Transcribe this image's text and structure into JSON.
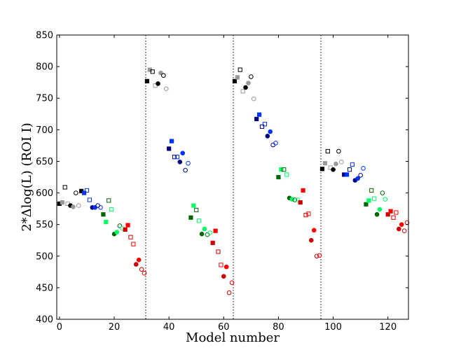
{
  "chart_data": {
    "type": "scatter",
    "title": "",
    "xlabel": "Model number",
    "ylabel": "2*Δlog(L) (ROI I)",
    "xlim": [
      -1,
      127.5
    ],
    "ylim": [
      400,
      850
    ],
    "xticks": [
      0,
      20,
      40,
      60,
      80,
      100,
      120
    ],
    "yticks": [
      400,
      450,
      500,
      550,
      600,
      650,
      700,
      750,
      800,
      850
    ],
    "vlines": [
      31.5,
      63.5,
      95.5
    ],
    "colors": {
      "black": "#000000",
      "gray": "#999999",
      "blue": "#0033ff",
      "dark_blue": "#000080",
      "green": "#00ff66",
      "dark_green": "#006600",
      "red": "#ff0000",
      "dark_red": "#cc0000"
    },
    "points": [
      {
        "x": 0,
        "y": 583,
        "marker": "s",
        "fill": true,
        "color": "black"
      },
      {
        "x": 1,
        "y": 585,
        "marker": "s",
        "fill": true,
        "color": "gray"
      },
      {
        "x": 2,
        "y": 609,
        "marker": "s",
        "fill": false,
        "color": "black"
      },
      {
        "x": 3,
        "y": 583,
        "marker": "s",
        "fill": false,
        "color": "gray"
      },
      {
        "x": 4,
        "y": 580,
        "marker": "o",
        "fill": true,
        "color": "black"
      },
      {
        "x": 5,
        "y": 578,
        "marker": "o",
        "fill": true,
        "color": "gray"
      },
      {
        "x": 6,
        "y": 600,
        "marker": "o",
        "fill": false,
        "color": "black"
      },
      {
        "x": 7,
        "y": 580,
        "marker": "o",
        "fill": false,
        "color": "gray"
      },
      {
        "x": 8,
        "y": 603,
        "marker": "s",
        "fill": true,
        "color": "black"
      },
      {
        "x": 9,
        "y": 600,
        "marker": "s",
        "fill": true,
        "color": "blue"
      },
      {
        "x": 10,
        "y": 604,
        "marker": "s",
        "fill": false,
        "color": "blue"
      },
      {
        "x": 11,
        "y": 589,
        "marker": "s",
        "fill": false,
        "color": "blue"
      },
      {
        "x": 12,
        "y": 577,
        "marker": "o",
        "fill": true,
        "color": "dark_blue"
      },
      {
        "x": 13,
        "y": 577,
        "marker": "o",
        "fill": true,
        "color": "blue"
      },
      {
        "x": 14,
        "y": 580,
        "marker": "o",
        "fill": false,
        "color": "dark_blue"
      },
      {
        "x": 15,
        "y": 577,
        "marker": "o",
        "fill": false,
        "color": "blue"
      },
      {
        "x": 16,
        "y": 566,
        "marker": "s",
        "fill": true,
        "color": "dark_green"
      },
      {
        "x": 17,
        "y": 554,
        "marker": "s",
        "fill": true,
        "color": "green"
      },
      {
        "x": 18,
        "y": 588,
        "marker": "s",
        "fill": false,
        "color": "dark_green"
      },
      {
        "x": 19,
        "y": 574,
        "marker": "s",
        "fill": false,
        "color": "green"
      },
      {
        "x": 20,
        "y": 535,
        "marker": "o",
        "fill": true,
        "color": "dark_green"
      },
      {
        "x": 21,
        "y": 538,
        "marker": "o",
        "fill": true,
        "color": "green"
      },
      {
        "x": 22,
        "y": 548,
        "marker": "o",
        "fill": false,
        "color": "dark_green"
      },
      {
        "x": 23,
        "y": 544,
        "marker": "o",
        "fill": false,
        "color": "green"
      },
      {
        "x": 24,
        "y": 542,
        "marker": "s",
        "fill": true,
        "color": "dark_red"
      },
      {
        "x": 25,
        "y": 549,
        "marker": "s",
        "fill": true,
        "color": "red"
      },
      {
        "x": 26,
        "y": 530,
        "marker": "s",
        "fill": false,
        "color": "dark_red"
      },
      {
        "x": 27,
        "y": 519,
        "marker": "s",
        "fill": false,
        "color": "red"
      },
      {
        "x": 28,
        "y": 487,
        "marker": "o",
        "fill": true,
        "color": "dark_red"
      },
      {
        "x": 29,
        "y": 494,
        "marker": "o",
        "fill": true,
        "color": "red"
      },
      {
        "x": 30,
        "y": 479,
        "marker": "o",
        "fill": false,
        "color": "dark_red"
      },
      {
        "x": 31,
        "y": 473,
        "marker": "o",
        "fill": false,
        "color": "red"
      },
      {
        "x": 32,
        "y": 777,
        "marker": "s",
        "fill": true,
        "color": "black"
      },
      {
        "x": 33,
        "y": 795,
        "marker": "s",
        "fill": true,
        "color": "gray"
      },
      {
        "x": 34,
        "y": 792,
        "marker": "s",
        "fill": false,
        "color": "black"
      },
      {
        "x": 35,
        "y": 770,
        "marker": "s",
        "fill": false,
        "color": "gray"
      },
      {
        "x": 36,
        "y": 773,
        "marker": "o",
        "fill": true,
        "color": "black"
      },
      {
        "x": 37,
        "y": 790,
        "marker": "o",
        "fill": true,
        "color": "gray"
      },
      {
        "x": 38,
        "y": 786,
        "marker": "o",
        "fill": false,
        "color": "black"
      },
      {
        "x": 39,
        "y": 765,
        "marker": "o",
        "fill": false,
        "color": "gray"
      },
      {
        "x": 40,
        "y": 670,
        "marker": "s",
        "fill": true,
        "color": "dark_blue"
      },
      {
        "x": 41,
        "y": 682,
        "marker": "s",
        "fill": true,
        "color": "blue"
      },
      {
        "x": 42,
        "y": 657,
        "marker": "s",
        "fill": false,
        "color": "dark_blue"
      },
      {
        "x": 43,
        "y": 657,
        "marker": "s",
        "fill": false,
        "color": "blue"
      },
      {
        "x": 44,
        "y": 649,
        "marker": "o",
        "fill": true,
        "color": "dark_blue"
      },
      {
        "x": 45,
        "y": 663,
        "marker": "o",
        "fill": true,
        "color": "blue"
      },
      {
        "x": 46,
        "y": 636,
        "marker": "o",
        "fill": false,
        "color": "dark_blue"
      },
      {
        "x": 47,
        "y": 647,
        "marker": "o",
        "fill": false,
        "color": "blue"
      },
      {
        "x": 48,
        "y": 561,
        "marker": "s",
        "fill": true,
        "color": "dark_green"
      },
      {
        "x": 49,
        "y": 580,
        "marker": "s",
        "fill": true,
        "color": "green"
      },
      {
        "x": 50,
        "y": 573,
        "marker": "s",
        "fill": false,
        "color": "dark_green"
      },
      {
        "x": 51,
        "y": 556,
        "marker": "s",
        "fill": false,
        "color": "green"
      },
      {
        "x": 52,
        "y": 535,
        "marker": "o",
        "fill": true,
        "color": "dark_green"
      },
      {
        "x": 53,
        "y": 543,
        "marker": "o",
        "fill": true,
        "color": "green"
      },
      {
        "x": 54,
        "y": 534,
        "marker": "o",
        "fill": false,
        "color": "dark_green"
      },
      {
        "x": 55,
        "y": 537,
        "marker": "o",
        "fill": false,
        "color": "green"
      },
      {
        "x": 56,
        "y": 521,
        "marker": "s",
        "fill": true,
        "color": "dark_red"
      },
      {
        "x": 57,
        "y": 540,
        "marker": "s",
        "fill": true,
        "color": "red"
      },
      {
        "x": 58,
        "y": 507,
        "marker": "s",
        "fill": false,
        "color": "dark_red"
      },
      {
        "x": 59,
        "y": 486,
        "marker": "s",
        "fill": false,
        "color": "red"
      },
      {
        "x": 60,
        "y": 468,
        "marker": "o",
        "fill": true,
        "color": "dark_red"
      },
      {
        "x": 61,
        "y": 483,
        "marker": "o",
        "fill": true,
        "color": "red"
      },
      {
        "x": 62,
        "y": 442,
        "marker": "o",
        "fill": false,
        "color": "dark_red"
      },
      {
        "x": 63,
        "y": 458,
        "marker": "o",
        "fill": false,
        "color": "red"
      },
      {
        "x": 64,
        "y": 777,
        "marker": "s",
        "fill": true,
        "color": "black"
      },
      {
        "x": 65,
        "y": 783,
        "marker": "s",
        "fill": true,
        "color": "gray"
      },
      {
        "x": 66,
        "y": 795,
        "marker": "s",
        "fill": false,
        "color": "black"
      },
      {
        "x": 67,
        "y": 761,
        "marker": "s",
        "fill": false,
        "color": "gray"
      },
      {
        "x": 68,
        "y": 767,
        "marker": "o",
        "fill": true,
        "color": "black"
      },
      {
        "x": 69,
        "y": 774,
        "marker": "o",
        "fill": true,
        "color": "gray"
      },
      {
        "x": 70,
        "y": 784,
        "marker": "o",
        "fill": false,
        "color": "black"
      },
      {
        "x": 71,
        "y": 749,
        "marker": "o",
        "fill": false,
        "color": "gray"
      },
      {
        "x": 72,
        "y": 717,
        "marker": "s",
        "fill": true,
        "color": "dark_blue"
      },
      {
        "x": 73,
        "y": 724,
        "marker": "s",
        "fill": true,
        "color": "blue"
      },
      {
        "x": 74,
        "y": 705,
        "marker": "s",
        "fill": false,
        "color": "dark_blue"
      },
      {
        "x": 75,
        "y": 709,
        "marker": "s",
        "fill": false,
        "color": "blue"
      },
      {
        "x": 76,
        "y": 690,
        "marker": "o",
        "fill": true,
        "color": "dark_blue"
      },
      {
        "x": 77,
        "y": 697,
        "marker": "o",
        "fill": true,
        "color": "blue"
      },
      {
        "x": 78,
        "y": 676,
        "marker": "o",
        "fill": false,
        "color": "dark_blue"
      },
      {
        "x": 79,
        "y": 679,
        "marker": "o",
        "fill": false,
        "color": "blue"
      },
      {
        "x": 80,
        "y": 625,
        "marker": "s",
        "fill": true,
        "color": "dark_green"
      },
      {
        "x": 81,
        "y": 637,
        "marker": "s",
        "fill": true,
        "color": "green"
      },
      {
        "x": 82,
        "y": 637,
        "marker": "s",
        "fill": false,
        "color": "dark_green"
      },
      {
        "x": 83,
        "y": 629,
        "marker": "s",
        "fill": false,
        "color": "green"
      },
      {
        "x": 84,
        "y": 592,
        "marker": "o",
        "fill": true,
        "color": "dark_green"
      },
      {
        "x": 85,
        "y": 590,
        "marker": "o",
        "fill": true,
        "color": "green"
      },
      {
        "x": 86,
        "y": 589,
        "marker": "o",
        "fill": false,
        "color": "dark_green"
      },
      {
        "x": 87,
        "y": 589,
        "marker": "o",
        "fill": false,
        "color": "green"
      },
      {
        "x": 88,
        "y": 585,
        "marker": "s",
        "fill": true,
        "color": "dark_red"
      },
      {
        "x": 89,
        "y": 604,
        "marker": "s",
        "fill": true,
        "color": "red"
      },
      {
        "x": 90,
        "y": 565,
        "marker": "s",
        "fill": false,
        "color": "dark_red"
      },
      {
        "x": 91,
        "y": 567,
        "marker": "s",
        "fill": false,
        "color": "red"
      },
      {
        "x": 92,
        "y": 525,
        "marker": "o",
        "fill": true,
        "color": "dark_red"
      },
      {
        "x": 93,
        "y": 541,
        "marker": "o",
        "fill": true,
        "color": "red"
      },
      {
        "x": 94,
        "y": 500,
        "marker": "o",
        "fill": false,
        "color": "dark_red"
      },
      {
        "x": 95,
        "y": 501,
        "marker": "o",
        "fill": false,
        "color": "red"
      },
      {
        "x": 96,
        "y": 638,
        "marker": "s",
        "fill": true,
        "color": "black"
      },
      {
        "x": 97,
        "y": 647,
        "marker": "s",
        "fill": true,
        "color": "gray"
      },
      {
        "x": 98,
        "y": 666,
        "marker": "s",
        "fill": false,
        "color": "black"
      },
      {
        "x": 99,
        "y": 640,
        "marker": "s",
        "fill": false,
        "color": "gray"
      },
      {
        "x": 100,
        "y": 637,
        "marker": "o",
        "fill": true,
        "color": "black"
      },
      {
        "x": 101,
        "y": 646,
        "marker": "o",
        "fill": true,
        "color": "gray"
      },
      {
        "x": 102,
        "y": 666,
        "marker": "o",
        "fill": false,
        "color": "black"
      },
      {
        "x": 103,
        "y": 649,
        "marker": "o",
        "fill": false,
        "color": "gray"
      },
      {
        "x": 104,
        "y": 629,
        "marker": "s",
        "fill": true,
        "color": "dark_blue"
      },
      {
        "x": 105,
        "y": 629,
        "marker": "s",
        "fill": true,
        "color": "blue"
      },
      {
        "x": 106,
        "y": 637,
        "marker": "s",
        "fill": false,
        "color": "dark_blue"
      },
      {
        "x": 107,
        "y": 645,
        "marker": "s",
        "fill": false,
        "color": "blue"
      },
      {
        "x": 108,
        "y": 620,
        "marker": "o",
        "fill": true,
        "color": "dark_blue"
      },
      {
        "x": 109,
        "y": 623,
        "marker": "o",
        "fill": true,
        "color": "blue"
      },
      {
        "x": 110,
        "y": 628,
        "marker": "o",
        "fill": false,
        "color": "dark_blue"
      },
      {
        "x": 111,
        "y": 639,
        "marker": "o",
        "fill": false,
        "color": "blue"
      },
      {
        "x": 112,
        "y": 582,
        "marker": "s",
        "fill": true,
        "color": "dark_green"
      },
      {
        "x": 113,
        "y": 588,
        "marker": "s",
        "fill": true,
        "color": "green"
      },
      {
        "x": 114,
        "y": 604,
        "marker": "s",
        "fill": false,
        "color": "dark_green"
      },
      {
        "x": 115,
        "y": 591,
        "marker": "s",
        "fill": false,
        "color": "green"
      },
      {
        "x": 116,
        "y": 566,
        "marker": "o",
        "fill": true,
        "color": "dark_green"
      },
      {
        "x": 117,
        "y": 574,
        "marker": "o",
        "fill": true,
        "color": "green"
      },
      {
        "x": 118,
        "y": 600,
        "marker": "o",
        "fill": false,
        "color": "dark_green"
      },
      {
        "x": 119,
        "y": 590,
        "marker": "o",
        "fill": false,
        "color": "green"
      },
      {
        "x": 120,
        "y": 566,
        "marker": "s",
        "fill": true,
        "color": "dark_red"
      },
      {
        "x": 121,
        "y": 571,
        "marker": "s",
        "fill": true,
        "color": "red"
      },
      {
        "x": 122,
        "y": 561,
        "marker": "s",
        "fill": false,
        "color": "dark_red"
      },
      {
        "x": 123,
        "y": 569,
        "marker": "s",
        "fill": false,
        "color": "red"
      },
      {
        "x": 124,
        "y": 543,
        "marker": "o",
        "fill": true,
        "color": "dark_red"
      },
      {
        "x": 125,
        "y": 550,
        "marker": "o",
        "fill": true,
        "color": "red"
      },
      {
        "x": 126,
        "y": 540,
        "marker": "o",
        "fill": false,
        "color": "dark_red"
      },
      {
        "x": 127,
        "y": 553,
        "marker": "o",
        "fill": false,
        "color": "red"
      }
    ]
  }
}
